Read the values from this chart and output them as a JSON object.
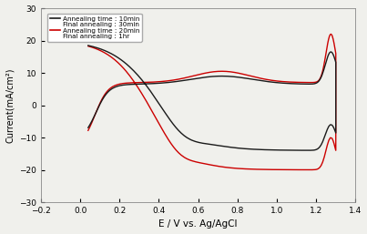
{
  "xlabel": "E / V vs. Ag/AgCl",
  "ylabel": "Current(mA/cm²)",
  "xlim": [
    -0.2,
    1.4
  ],
  "ylim": [
    -30,
    30
  ],
  "xticks": [
    -0.2,
    0.0,
    0.2,
    0.4,
    0.6,
    0.8,
    1.0,
    1.2,
    1.4
  ],
  "yticks": [
    -30,
    -20,
    -10,
    0,
    10,
    20,
    30
  ],
  "legend": [
    "Annealing time : 10min",
    "Final annealing : 30min",
    "Annealing time : 20min",
    "Final annealing : 1hr"
  ],
  "line_colors": [
    "#1a1a1a",
    "#cc0000"
  ],
  "background_color": "#f0f0ec"
}
